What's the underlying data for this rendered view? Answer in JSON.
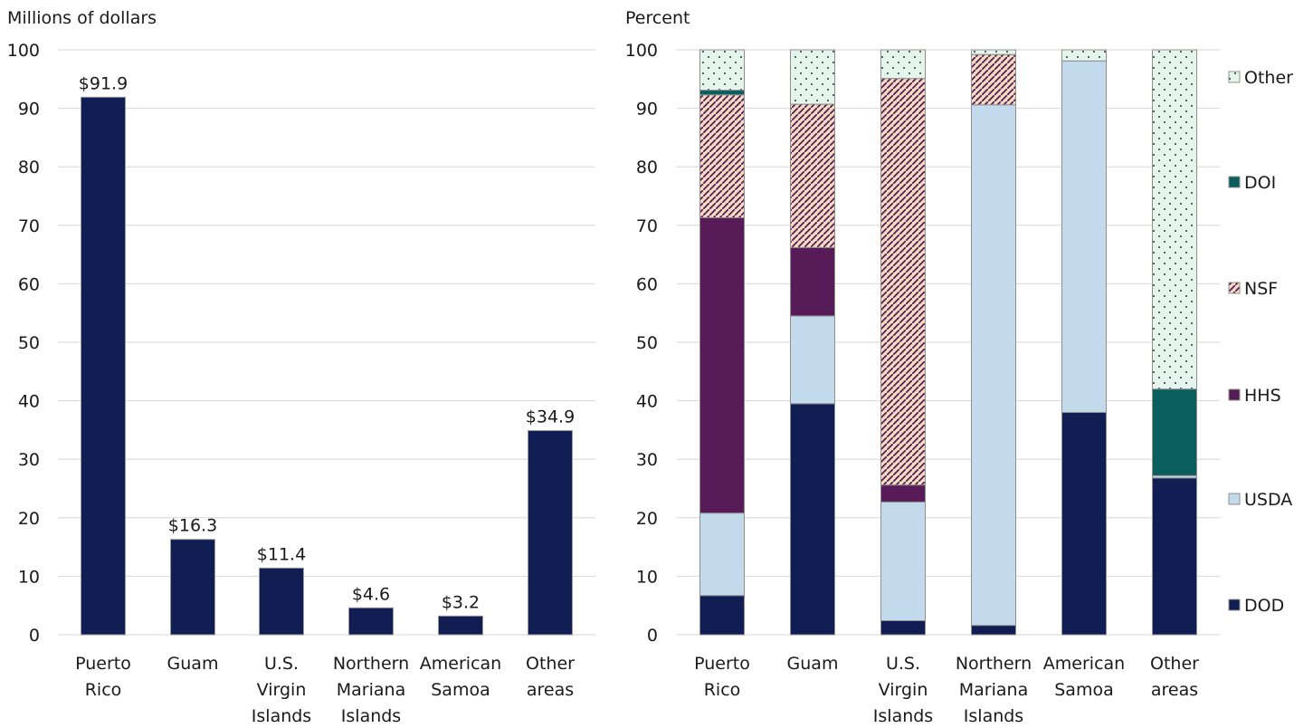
{
  "chart_data": [
    {
      "type": "bar",
      "ylabel": "Millions of dollars",
      "ylim": [
        0,
        100
      ],
      "yticks": [
        "0",
        "10",
        "20",
        "30",
        "40",
        "50",
        "60",
        "70",
        "80",
        "90",
        "100"
      ],
      "grid": true,
      "categories": [
        [
          "Puerto",
          "Rico"
        ],
        [
          "Guam"
        ],
        [
          "U.S.",
          "Virgin",
          "Islands"
        ],
        [
          "Northern",
          "Mariana",
          "Islands"
        ],
        [
          "American",
          "Samoa"
        ],
        [
          "Other",
          "areas"
        ]
      ],
      "values": [
        91.9,
        16.3,
        11.4,
        4.6,
        3.2,
        34.9
      ],
      "data_labels": [
        "$91.9",
        "$16.3",
        "$11.4",
        "$4.6",
        "$3.2",
        "$34.9"
      ],
      "bar_color": "#111e54"
    },
    {
      "type": "bar",
      "stacked": true,
      "ylabel": "Percent",
      "ylim": [
        0,
        100
      ],
      "yticks": [
        "0",
        "10",
        "20",
        "30",
        "40",
        "50",
        "60",
        "70",
        "80",
        "90",
        "100"
      ],
      "grid": true,
      "legend_position": "right",
      "categories": [
        [
          "Puerto",
          "Rico"
        ],
        [
          "Guam"
        ],
        [
          "U.S.",
          "Virgin",
          "Islands"
        ],
        [
          "Northern",
          "Mariana",
          "Islands"
        ],
        [
          "American",
          "Samoa"
        ],
        [
          "Other",
          "areas"
        ]
      ],
      "series": [
        {
          "name": "DOD",
          "color": "#111e54",
          "pattern": "solid",
          "values": [
            6.7,
            39.5,
            2.4,
            1.6,
            38.0,
            26.8
          ]
        },
        {
          "name": "USDA",
          "color": "#c3d9ec",
          "pattern": "solid",
          "values": [
            14.1,
            15.0,
            20.3,
            89.0,
            60.1,
            0.4
          ]
        },
        {
          "name": "HHS",
          "color": "#571c57",
          "pattern": "solid",
          "values": [
            50.5,
            11.7,
            2.9,
            0.0,
            0.0,
            0.0
          ]
        },
        {
          "name": "NSF",
          "color": "#f3dcc0",
          "pattern": "hatched",
          "values": [
            21.0,
            24.5,
            69.5,
            8.6,
            0.0,
            0.0
          ]
        },
        {
          "name": "DOI",
          "color": "#0b5e5e",
          "pattern": "solid",
          "values": [
            0.8,
            0.0,
            0.0,
            0.0,
            0.0,
            14.8
          ]
        },
        {
          "name": "Other",
          "color": "#e6f4ee",
          "pattern": "dotted",
          "values": [
            6.9,
            9.3,
            4.9,
            0.8,
            1.9,
            58.0
          ]
        }
      ]
    }
  ]
}
